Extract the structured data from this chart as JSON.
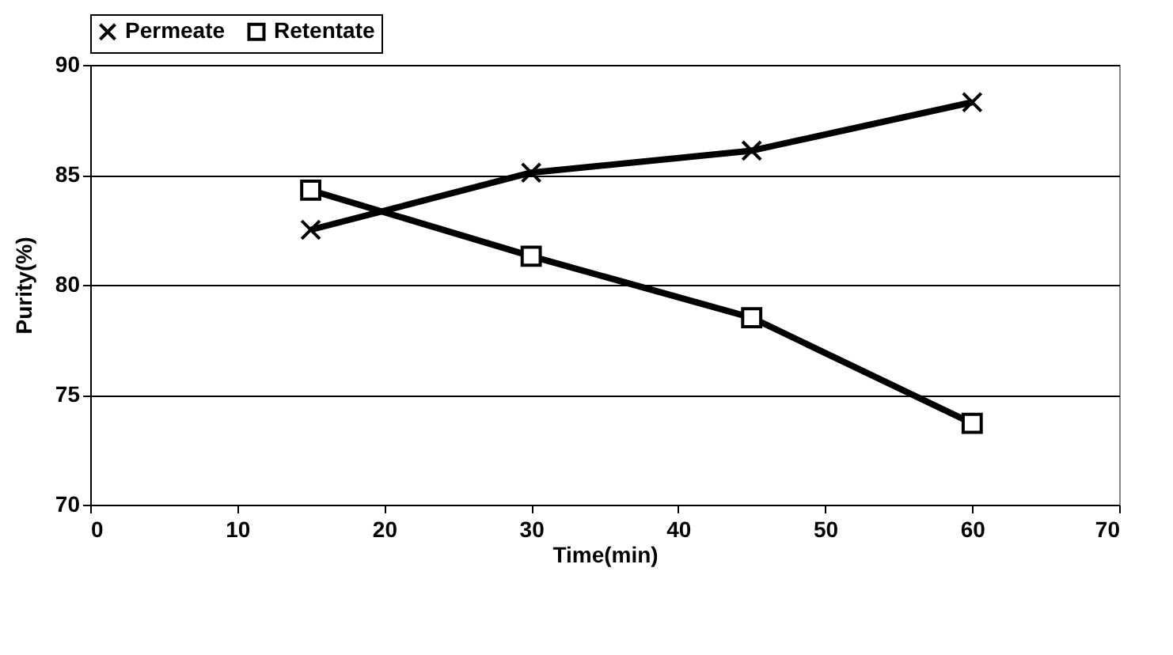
{
  "chart_data": {
    "type": "line",
    "xlabel": "Time(min)",
    "ylabel": "Purity(%)",
    "x": [
      15,
      30,
      45,
      60
    ],
    "series": [
      {
        "name": "Permeate",
        "color": "#000000",
        "marker": "cross",
        "values": [
          82.5,
          85.1,
          86.1,
          88.3
        ]
      },
      {
        "name": "Retentate",
        "color": "#000000",
        "marker": "square",
        "values": [
          84.3,
          81.3,
          78.5,
          73.7
        ]
      }
    ],
    "xlim": [
      0,
      70
    ],
    "xticks": [
      0,
      10,
      20,
      30,
      40,
      50,
      60,
      70
    ],
    "ylim": [
      70,
      90
    ],
    "yticks": [
      70,
      75,
      80,
      85,
      90
    ],
    "grid": "y",
    "legend": "top",
    "line_style": "solid"
  }
}
